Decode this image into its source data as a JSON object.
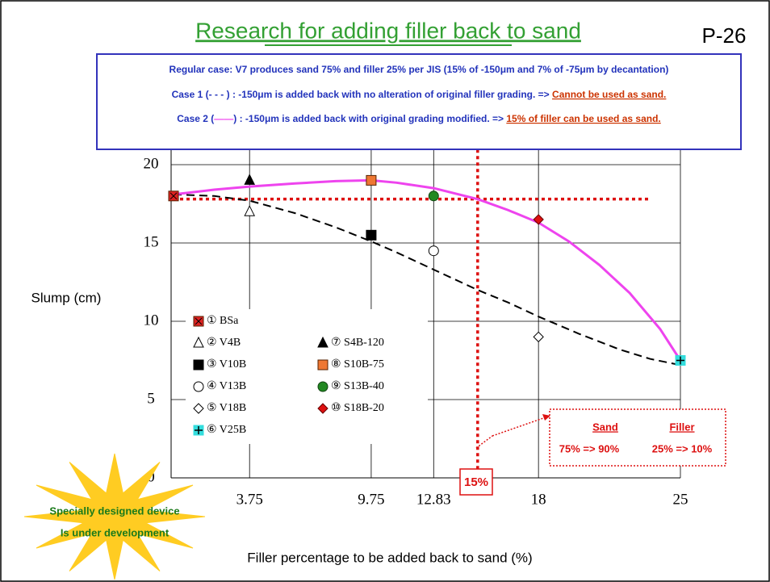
{
  "title": "Research for adding filler back to sand",
  "page_number": "P-26",
  "info_box": {
    "line1": "Regular case: V7 produces sand 75% and filler 25% per JIS (15% of -150μm and 7% of -75μm by decantation)",
    "line2": {
      "text": "Case 1 (- - - ) : -150μm is added back with no alteration of original filler grading. => ",
      "highlight": "Cannot be used as sand."
    },
    "line3": {
      "prefix": "Case 2 (",
      "text": ") : -150μm is added back with original grading modified. => ",
      "highlight": "15% of filler can be used as sand."
    }
  },
  "chart_data": {
    "type": "scatter",
    "xlabel": "Filler percentage to be added back to sand (%)",
    "ylabel": "Slump (cm)",
    "xlim": [
      0,
      25
    ],
    "ylim": [
      0,
      22
    ],
    "xticks": [
      3.75,
      9.75,
      12.83,
      18,
      25
    ],
    "yticks": [
      0,
      5,
      10,
      15,
      20
    ],
    "grid": true,
    "series": [
      {
        "name": "① BSa",
        "marker": "square-x",
        "color": "#dd2222",
        "x": [
          0
        ],
        "values": [
          18
        ]
      },
      {
        "name": "② V4B",
        "marker": "triangle-open",
        "color": "#000000",
        "x": [
          3.75
        ],
        "values": [
          17
        ]
      },
      {
        "name": "③ V10B",
        "marker": "square-open",
        "color": "#000000",
        "x": [
          9.75
        ],
        "values": [
          15.5
        ]
      },
      {
        "name": "④ V13B",
        "marker": "circle-open",
        "color": "#000000",
        "x": [
          12.83
        ],
        "values": [
          14.5
        ]
      },
      {
        "name": "⑤ V18B",
        "marker": "diamond-open",
        "color": "#000000",
        "x": [
          18
        ],
        "values": [
          9
        ]
      },
      {
        "name": "⑥ V25B",
        "marker": "plus-square",
        "color": "#33dddd",
        "x": [
          25
        ],
        "values": [
          7.5
        ]
      },
      {
        "name": "⑦ S4B-120",
        "marker": "triangle",
        "color": "#000000",
        "x": [
          3.75
        ],
        "values": [
          19
        ]
      },
      {
        "name": "⑧ S10B-75",
        "marker": "square",
        "color": "#ee7733",
        "x": [
          9.75
        ],
        "values": [
          19
        ]
      },
      {
        "name": "⑨ S13B-40",
        "marker": "circle",
        "color": "#228822",
        "x": [
          12.83
        ],
        "values": [
          18
        ]
      },
      {
        "name": "⑩ S18B-20",
        "marker": "diamond",
        "color": "#dd1111",
        "x": [
          18
        ],
        "values": [
          16.5
        ]
      }
    ],
    "curves": [
      {
        "style": "dashed",
        "color": "#000000",
        "x": [
          0,
          2,
          3.75,
          6,
          8,
          9.75,
          11,
          12.83,
          15,
          16.5,
          18,
          20,
          22,
          23.5,
          25
        ],
        "values": [
          18.1,
          18,
          17.7,
          16.9,
          16,
          15.1,
          14.4,
          13.3,
          12,
          11.2,
          10.3,
          9.2,
          8.2,
          7.6,
          7.2
        ]
      },
      {
        "style": "solid",
        "color": "#ee44ee",
        "x": [
          0,
          2,
          3.75,
          6,
          8,
          9.75,
          11,
          12.83,
          15,
          16.5,
          18,
          19.5,
          21,
          22.5,
          24,
          25
        ],
        "values": [
          18.1,
          18.4,
          18.6,
          18.8,
          18.95,
          19,
          18.85,
          18.5,
          17.8,
          17.1,
          16.3,
          15.1,
          13.6,
          11.8,
          9.5,
          7.5
        ]
      }
    ],
    "reference_lines": {
      "y": 17.8,
      "x": 15,
      "x_end": 23.5,
      "color": "#dd1111"
    },
    "callout": "15%",
    "result_box": {
      "sand_header": "Sand",
      "filler_header": "Filler",
      "sand": "75% => 90%",
      "filler": "25% => 10%"
    }
  },
  "starburst": {
    "line1": "Specially designed device",
    "line2": "Is under development"
  }
}
